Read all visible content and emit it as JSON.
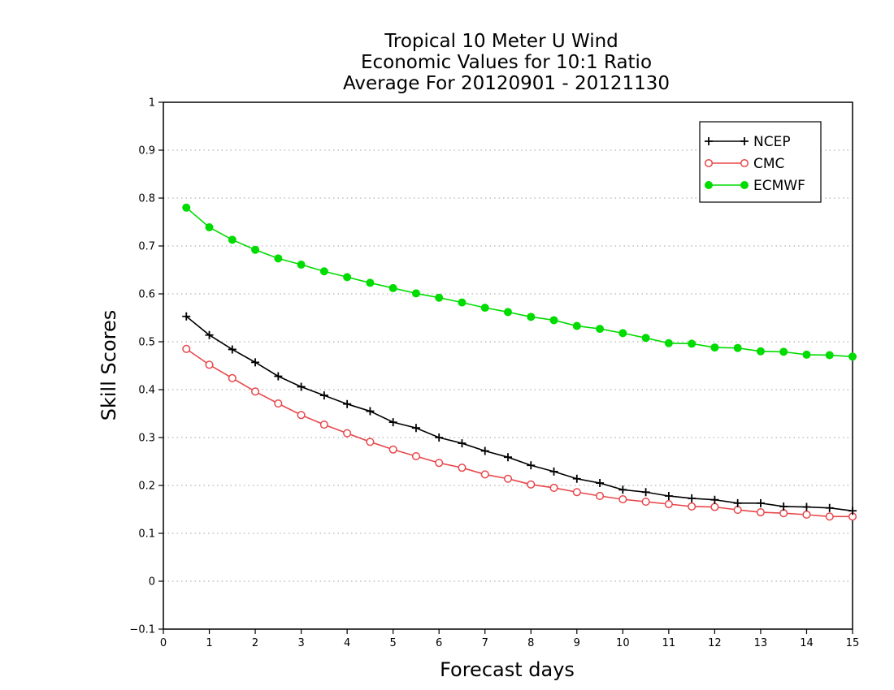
{
  "chart_data": {
    "type": "line",
    "title": [
      "Tropical 10 Meter U Wind",
      "Economic Values for 10:1 Ratio",
      "Average For 20120901 - 20121130"
    ],
    "xlabel": "Forecast days",
    "ylabel": "Skill Scores",
    "xlim": [
      0,
      15
    ],
    "ylim": [
      -0.1,
      1
    ],
    "xticks": [
      "0",
      "1",
      "2",
      "3",
      "4",
      "5",
      "6",
      "7",
      "8",
      "9",
      "10",
      "11",
      "12",
      "13",
      "14",
      "15"
    ],
    "yticks": [
      "-0.1",
      "0",
      "0.1",
      "0.2",
      "0.3",
      "0.4",
      "0.5",
      "0.6",
      "0.7",
      "0.8",
      "0.9",
      "1"
    ],
    "grid": "horizontal dotted",
    "legend_position": "top-right",
    "x": [
      0.5,
      1,
      1.5,
      2,
      2.5,
      3,
      3.5,
      4,
      4.5,
      5,
      5.5,
      6,
      6.5,
      7,
      7.5,
      8,
      8.5,
      9,
      9.5,
      10,
      10.5,
      11,
      11.5,
      12,
      12.5,
      13,
      13.5,
      14,
      14.5,
      15
    ],
    "series": [
      {
        "name": "NCEP",
        "color": "#000000",
        "marker": "plus",
        "values": [
          0.553,
          0.514,
          0.484,
          0.457,
          0.428,
          0.406,
          0.388,
          0.37,
          0.355,
          0.332,
          0.32,
          0.3,
          0.288,
          0.272,
          0.259,
          0.242,
          0.229,
          0.214,
          0.205,
          0.191,
          0.186,
          0.178,
          0.173,
          0.17,
          0.163,
          0.163,
          0.156,
          0.155,
          0.153,
          0.147
        ]
      },
      {
        "name": "CMC",
        "color": "#e8474b",
        "marker": "open-circle",
        "values": [
          0.485,
          0.452,
          0.424,
          0.396,
          0.371,
          0.347,
          0.327,
          0.309,
          0.291,
          0.275,
          0.261,
          0.247,
          0.237,
          0.223,
          0.214,
          0.202,
          0.195,
          0.186,
          0.178,
          0.171,
          0.166,
          0.161,
          0.156,
          0.155,
          0.149,
          0.144,
          0.142,
          0.139,
          0.135,
          0.135
        ]
      },
      {
        "name": "ECMWF",
        "color": "#00dc00",
        "marker": "filled-circle",
        "values": [
          0.78,
          0.739,
          0.713,
          0.692,
          0.674,
          0.661,
          0.647,
          0.635,
          0.623,
          0.612,
          0.601,
          0.592,
          0.582,
          0.571,
          0.562,
          0.552,
          0.545,
          0.533,
          0.527,
          0.518,
          0.508,
          0.497,
          0.496,
          0.488,
          0.487,
          0.48,
          0.479,
          0.473,
          0.472,
          0.469
        ]
      }
    ]
  }
}
